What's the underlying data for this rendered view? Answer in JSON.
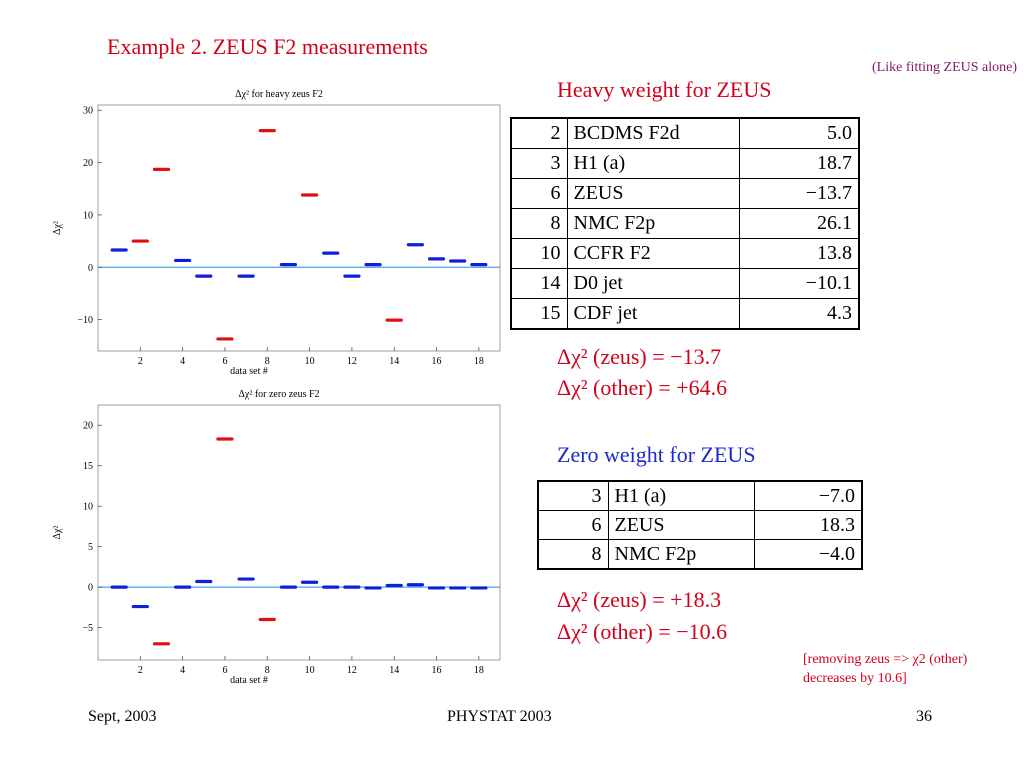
{
  "slide": {
    "title": "Example 2. ZEUS F2 measurements",
    "side_note": "(Like fitting ZEUS alone)",
    "remove_note": "[removing zeus => χ2 (other) decreases by 10.6]",
    "footer": {
      "date": "Sept, 2003",
      "conference": "PHYSTAT 2003",
      "page": "36"
    }
  },
  "heavy": {
    "heading": "Heavy weight for ZEUS",
    "rows": [
      {
        "set": "2",
        "name": "BCDMS F2d",
        "value": "5.0"
      },
      {
        "set": "3",
        "name": "H1 (a)",
        "value": "18.7"
      },
      {
        "set": "6",
        "name": "ZEUS",
        "value": "−13.7"
      },
      {
        "set": "8",
        "name": "NMC F2p",
        "value": "26.1"
      },
      {
        "set": "10",
        "name": "CCFR F2",
        "value": "13.8"
      },
      {
        "set": "14",
        "name": "D0 jet",
        "value": "−10.1"
      },
      {
        "set": "15",
        "name": "CDF jet",
        "value": "4.3"
      }
    ],
    "sum_zeus": "Δχ² (zeus) = −13.7",
    "sum_other": "Δχ² (other) = +64.6"
  },
  "zero": {
    "heading": "Zero weight for ZEUS",
    "rows": [
      {
        "set": "3",
        "name": "H1 (a)",
        "value": "−7.0"
      },
      {
        "set": "6",
        "name": "ZEUS",
        "value": "18.3"
      },
      {
        "set": "8",
        "name": "NMC F2p",
        "value": "−4.0"
      }
    ],
    "sum_zeus": "Δχ² (zeus) = +18.3",
    "sum_other": "Δχ² (other) = −10.6"
  },
  "colors": {
    "highlight": "#e01010",
    "normal": "#1020d8",
    "baseline": "#4aa3ea",
    "axis": "#555555"
  },
  "chart_data": [
    {
      "type": "scatter",
      "title": "Δχ² for heavy zeus F2",
      "xlabel": "data set #",
      "ylabel": "Δχ²",
      "xlim": [
        0,
        19
      ],
      "ylim": [
        -16,
        31
      ],
      "xticks": [
        2,
        4,
        6,
        8,
        10,
        12,
        14,
        16,
        18
      ],
      "yticks": [
        -10,
        0,
        10,
        20,
        30
      ],
      "grid": false,
      "baseline": 0,
      "points": [
        {
          "x": 1,
          "y": 3.3,
          "highlight": false
        },
        {
          "x": 2,
          "y": 5.0,
          "highlight": true
        },
        {
          "x": 3,
          "y": 18.7,
          "highlight": true
        },
        {
          "x": 4,
          "y": 1.3,
          "highlight": false
        },
        {
          "x": 5,
          "y": -1.7,
          "highlight": false
        },
        {
          "x": 6,
          "y": -13.7,
          "highlight": true
        },
        {
          "x": 7,
          "y": -1.7,
          "highlight": false
        },
        {
          "x": 8,
          "y": 26.1,
          "highlight": true
        },
        {
          "x": 9,
          "y": 0.5,
          "highlight": false
        },
        {
          "x": 10,
          "y": 13.8,
          "highlight": true
        },
        {
          "x": 11,
          "y": 2.7,
          "highlight": false
        },
        {
          "x": 12,
          "y": -1.7,
          "highlight": false
        },
        {
          "x": 13,
          "y": 0.5,
          "highlight": false
        },
        {
          "x": 14,
          "y": -10.1,
          "highlight": true
        },
        {
          "x": 15,
          "y": 4.3,
          "highlight": false
        },
        {
          "x": 16,
          "y": 1.6,
          "highlight": false
        },
        {
          "x": 17,
          "y": 1.2,
          "highlight": false
        },
        {
          "x": 18,
          "y": 0.5,
          "highlight": false
        }
      ]
    },
    {
      "type": "scatter",
      "title": "Δχ² for zero zeus F2",
      "xlabel": "data set #",
      "ylabel": "Δχ²",
      "xlim": [
        0,
        19
      ],
      "ylim": [
        -9,
        22.5
      ],
      "xticks": [
        2,
        4,
        6,
        8,
        10,
        12,
        14,
        16,
        18
      ],
      "yticks": [
        -5,
        0,
        5,
        10,
        15,
        20
      ],
      "grid": false,
      "baseline": 0,
      "points": [
        {
          "x": 1,
          "y": 0.0,
          "highlight": false
        },
        {
          "x": 2,
          "y": -2.4,
          "highlight": false
        },
        {
          "x": 3,
          "y": -7.0,
          "highlight": true
        },
        {
          "x": 4,
          "y": 0.0,
          "highlight": false
        },
        {
          "x": 5,
          "y": 0.7,
          "highlight": false
        },
        {
          "x": 6,
          "y": 18.3,
          "highlight": true
        },
        {
          "x": 7,
          "y": 1.0,
          "highlight": false
        },
        {
          "x": 8,
          "y": -4.0,
          "highlight": true
        },
        {
          "x": 9,
          "y": 0.0,
          "highlight": false
        },
        {
          "x": 10,
          "y": 0.6,
          "highlight": false
        },
        {
          "x": 11,
          "y": 0.0,
          "highlight": false
        },
        {
          "x": 12,
          "y": 0.0,
          "highlight": false
        },
        {
          "x": 13,
          "y": -0.1,
          "highlight": false
        },
        {
          "x": 14,
          "y": 0.2,
          "highlight": false
        },
        {
          "x": 15,
          "y": 0.3,
          "highlight": false
        },
        {
          "x": 16,
          "y": -0.1,
          "highlight": false
        },
        {
          "x": 17,
          "y": -0.1,
          "highlight": false
        },
        {
          "x": 18,
          "y": -0.1,
          "highlight": false
        }
      ]
    }
  ]
}
